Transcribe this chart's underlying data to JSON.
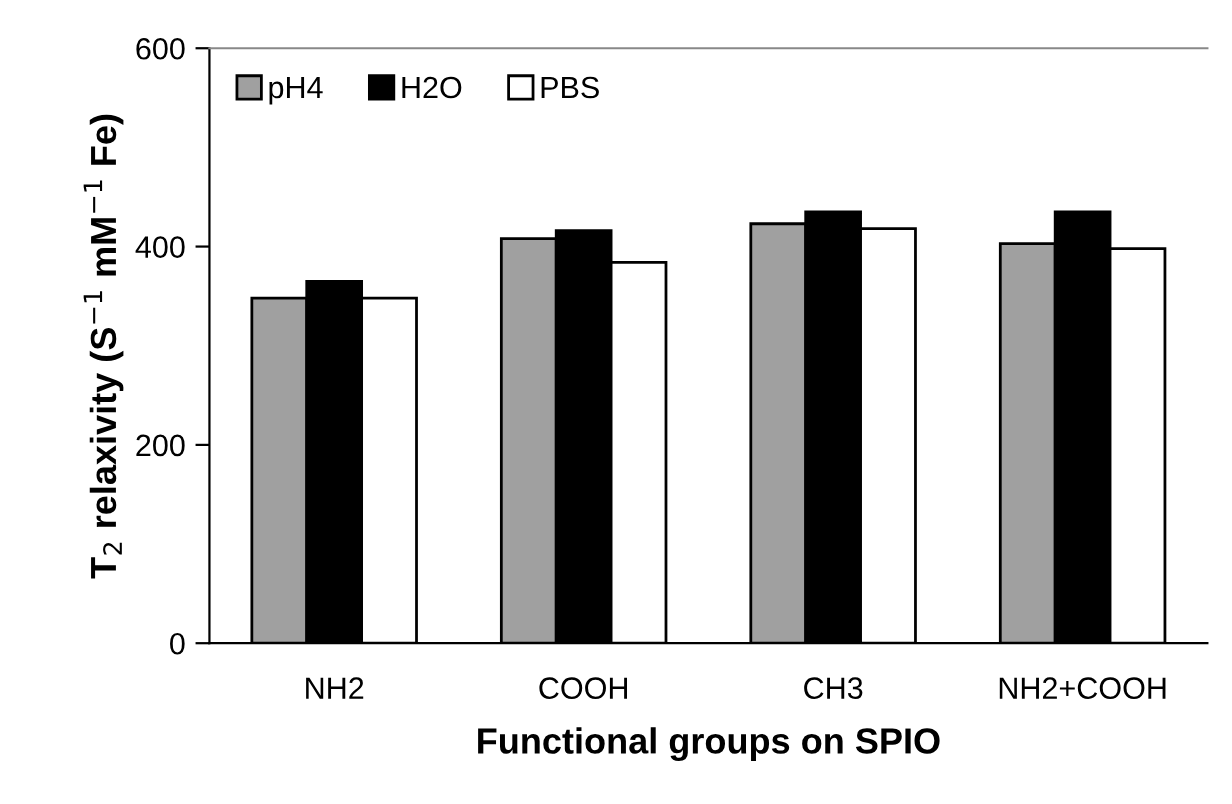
{
  "chart_data": {
    "type": "bar",
    "xlabel": "Functional groups on SPIO",
    "ylabel": "T$_{2}$ relaxivity (S$^{−1}$ mM$^{−1}$ Fe)",
    "categories": [
      "NH2",
      "COOH",
      "CH3",
      "NH2+COOH"
    ],
    "series": [
      {
        "name": "pH4",
        "color": "#a0a0a0",
        "values": [
          348,
          408,
          423,
          403
        ]
      },
      {
        "name": "H2O",
        "color": "#000000",
        "values": [
          365,
          416,
          435,
          435
        ]
      },
      {
        "name": "PBS",
        "color": "#ffffff",
        "values": [
          348,
          384,
          418,
          398
        ]
      }
    ],
    "ylim": [
      0,
      600
    ],
    "yticks": [
      0,
      200,
      400,
      600
    ],
    "grid": false,
    "legend": "top left"
  }
}
